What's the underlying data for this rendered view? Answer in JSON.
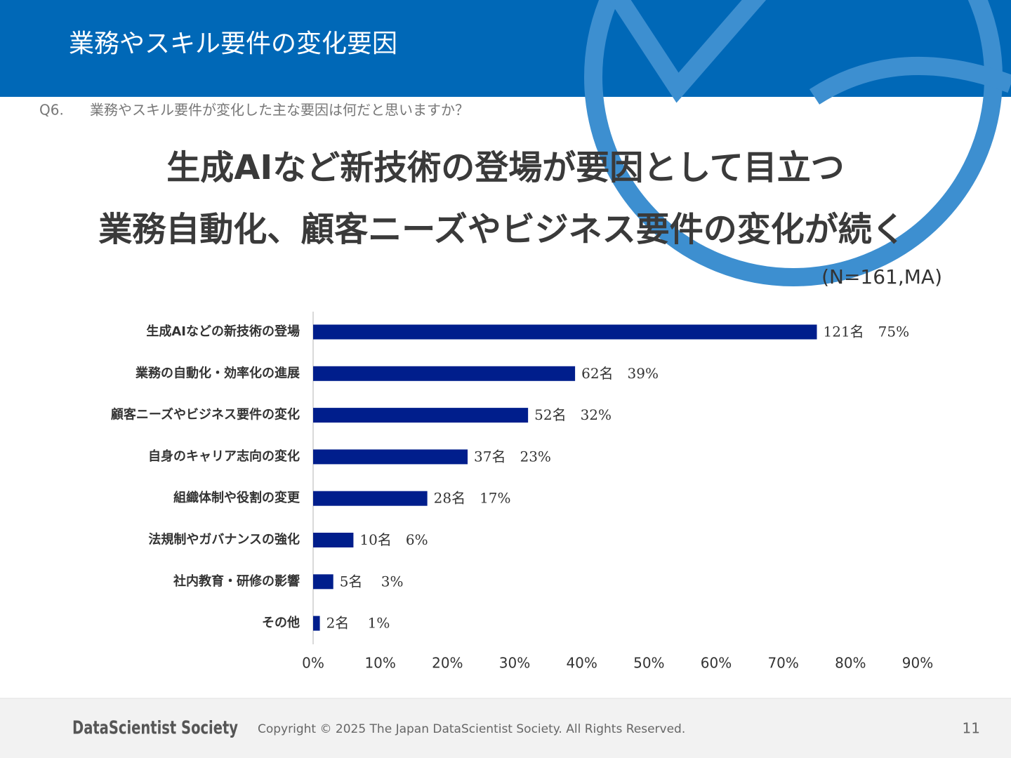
{
  "header": {
    "title": "業務やスキル要件の変化要因"
  },
  "question": {
    "number": "Q6.",
    "text": "業務やスキル要件が変化した主な要因は何だと思いますか？"
  },
  "headline": [
    "生成AIなど新技術の登場が要因として目立つ",
    "業務自動化、顧客ニーズやビジネス要件の変化が続く"
  ],
  "note": "(N=161,MA)",
  "chart_data": {
    "type": "bar",
    "orientation": "horizontal",
    "categories": [
      "生成AIなどの新技術の登場",
      "業務の自動化・効率化の進展",
      "顧客ニーズやビジネス要件の変化",
      "自身のキャリア志向の変化",
      "組織体制や役割の変更",
      "法規制やガバナンスの強化",
      "社内教育・研修の影響",
      "その他"
    ],
    "values": [
      75,
      39,
      32,
      23,
      17,
      6,
      3,
      1
    ],
    "value_labels": [
      "121名　75%",
      "62名　39%",
      "52名　32%",
      "37名　23%",
      "28名　17%",
      "10名　6%",
      "5名　 3%",
      "2名　 1%"
    ],
    "color": "#001e8c",
    "xlim": [
      0,
      90
    ],
    "xticks": [
      {
        "value": 0,
        "label": "0%"
      },
      {
        "value": 10,
        "label": "10%"
      },
      {
        "value": 20,
        "label": "20%"
      },
      {
        "value": 30,
        "label": "30%"
      },
      {
        "value": 40,
        "label": "40%"
      },
      {
        "value": 50,
        "label": "50%"
      },
      {
        "value": 60,
        "label": "60%"
      },
      {
        "value": 70,
        "label": "70%"
      },
      {
        "value": 80,
        "label": "80%"
      },
      {
        "value": 90,
        "label": "90%"
      }
    ],
    "grid": false
  },
  "footer": {
    "logo": "DataScientist Society",
    "copyright": "Copyright © 2025 The Japan DataScientist Society. All Rights Reserved.",
    "page": "11"
  }
}
